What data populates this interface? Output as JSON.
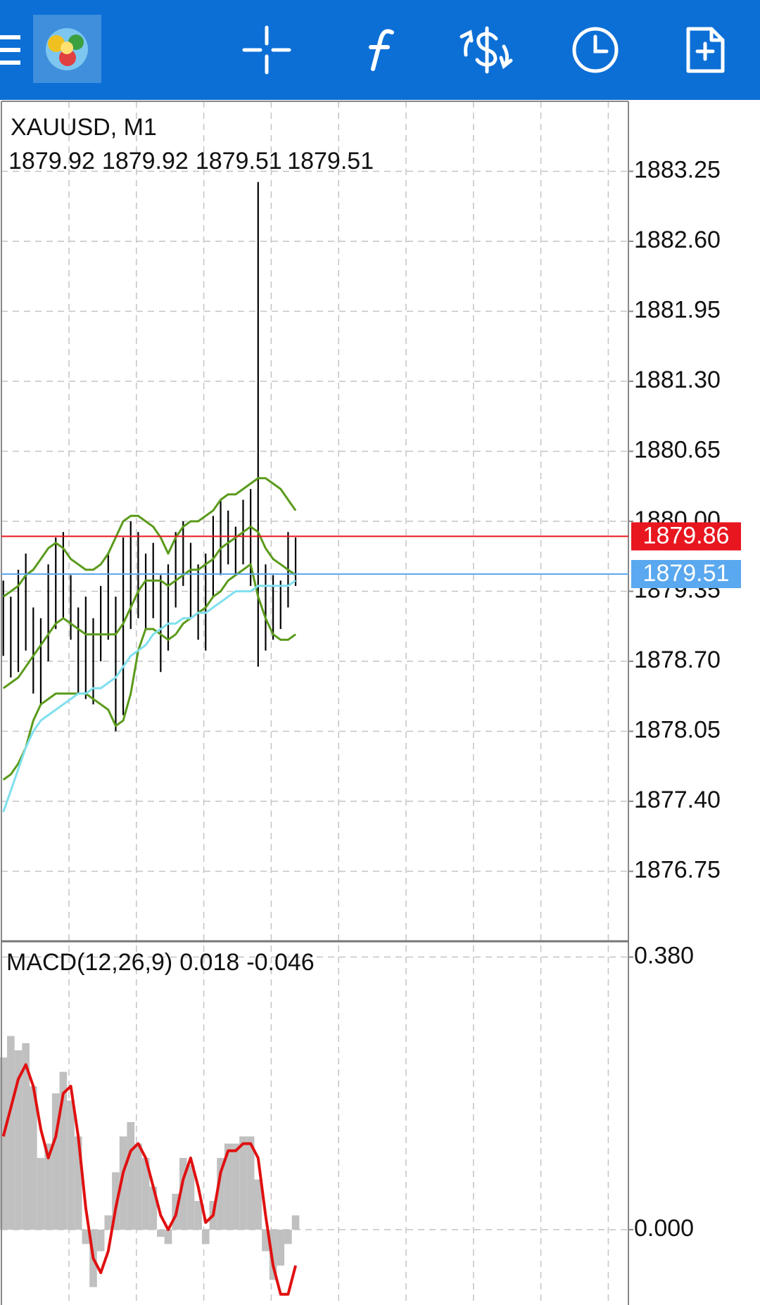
{
  "chart_data": [
    {
      "type": "ohlc",
      "title": "XAUUSD, M1",
      "quote": [
        1879.92,
        1879.92,
        1879.51,
        1879.51
      ],
      "high": [
        1879.45,
        1879.3,
        1879.55,
        1879.7,
        1879.2,
        1879.1,
        1879.6,
        1879.85,
        1879.9,
        1879.5,
        1879.2,
        1879.3,
        1879.1,
        1879.4,
        1879.7,
        1879.3,
        1879.85,
        1880.0,
        1879.9,
        1879.7,
        1879.8,
        1879.5,
        1879.6,
        1879.9,
        1880.0,
        1879.8,
        1879.6,
        1879.7,
        1880.05,
        1880.2,
        1880.1,
        1879.95,
        1880.2,
        1880.3,
        1883.15,
        1879.6,
        1879.5,
        1879.45,
        1879.9,
        1879.85
      ],
      "low": [
        1878.75,
        1878.55,
        1878.6,
        1878.8,
        1878.4,
        1878.3,
        1878.7,
        1879.0,
        1879.1,
        1878.9,
        1878.4,
        1878.35,
        1878.3,
        1878.7,
        1878.9,
        1878.05,
        1878.2,
        1879.0,
        1879.1,
        1879.0,
        1879.1,
        1878.6,
        1878.8,
        1879.2,
        1879.4,
        1879.1,
        1878.9,
        1878.8,
        1879.3,
        1879.5,
        1879.6,
        1879.5,
        1879.6,
        1879.4,
        1878.65,
        1878.8,
        1878.9,
        1879.0,
        1879.2,
        1879.4
      ],
      "color": "#000000",
      "indicators": [
        {
          "color": "#5a9a1a",
          "values": [
            1879.3,
            1879.35,
            1879.4,
            1879.5,
            1879.55,
            1879.65,
            1879.75,
            1879.8,
            1879.75,
            1879.65,
            1879.6,
            1879.55,
            1879.55,
            1879.6,
            1879.7,
            1879.85,
            1880.0,
            1880.05,
            1880.05,
            1880.0,
            1879.95,
            1879.85,
            1879.7,
            1879.85,
            1879.95,
            1880.0,
            1880.0,
            1880.05,
            1880.1,
            1880.2,
            1880.25,
            1880.25,
            1880.3,
            1880.35,
            1880.4,
            1880.4,
            1880.35,
            1880.3,
            1880.2,
            1880.1
          ]
        },
        {
          "color": "#5a9a1a",
          "values": [
            1878.45,
            1878.5,
            1878.55,
            1878.65,
            1878.75,
            1878.85,
            1878.95,
            1879.05,
            1879.1,
            1879.05,
            1879.0,
            1878.95,
            1878.95,
            1878.95,
            1878.95,
            1878.95,
            1879.05,
            1879.2,
            1879.35,
            1879.45,
            1879.45,
            1879.45,
            1879.4,
            1879.45,
            1879.5,
            1879.55,
            1879.55,
            1879.6,
            1879.65,
            1879.75,
            1879.8,
            1879.85,
            1879.9,
            1879.95,
            1879.9,
            1879.75,
            1879.65,
            1879.6,
            1879.55,
            1879.5
          ]
        },
        {
          "color": "#5a9a1a",
          "values": [
            1877.6,
            1877.65,
            1877.75,
            1877.9,
            1878.15,
            1878.3,
            1878.35,
            1878.4,
            1878.4,
            1878.4,
            1878.4,
            1878.4,
            1878.35,
            1878.3,
            1878.25,
            1878.1,
            1878.15,
            1878.4,
            1878.8,
            1879.0,
            1879.0,
            1878.95,
            1878.9,
            1878.95,
            1879.05,
            1879.1,
            1879.15,
            1879.2,
            1879.3,
            1879.35,
            1879.45,
            1879.5,
            1879.55,
            1879.6,
            1879.3,
            1879.1,
            1878.95,
            1878.9,
            1878.9,
            1878.95
          ]
        },
        {
          "color": "#7fe0ee",
          "values": [
            1877.3,
            1877.5,
            1877.7,
            1877.9,
            1878.05,
            1878.15,
            1878.2,
            1878.25,
            1878.3,
            1878.35,
            1878.4,
            1878.4,
            1878.45,
            1878.45,
            1878.5,
            1878.55,
            1878.65,
            1878.75,
            1878.8,
            1878.85,
            1878.95,
            1879.0,
            1879.05,
            1879.05,
            1879.1,
            1879.1,
            1879.15,
            1879.15,
            1879.2,
            1879.25,
            1879.3,
            1879.35,
            1879.35,
            1879.35,
            1879.4,
            1879.4,
            1879.4,
            1879.4,
            1879.4,
            1879.45
          ]
        }
      ],
      "price_lines": [
        {
          "value": 1879.86,
          "color": "#e8161e"
        },
        {
          "value": 1879.51,
          "color": "#5aa8ef"
        }
      ],
      "ylim": [
        1876.1,
        1883.9
      ],
      "yticks": [
        1876.75,
        {
          "value": 1877.4,
          "label": "1877.40"
        },
        1878.05,
        {
          "value": 1878.7,
          "label": "1878.70"
        },
        1879.35,
        {
          "value": 1880.0,
          "label": "1880.00"
        },
        1880.65,
        {
          "value": 1881.3,
          "label": "1881.30"
        },
        1881.95,
        {
          "value": 1882.6,
          "label": "1882.60"
        },
        1883.25
      ],
      "grid": true
    },
    {
      "type": "macd",
      "title": "MACD(12,26,9)",
      "main_value": 0.018,
      "signal_value": -0.046,
      "histogram": {
        "color": "#c0c0c0",
        "values": [
          0.24,
          0.27,
          0.25,
          0.26,
          0.2,
          0.1,
          0.12,
          0.19,
          0.22,
          0.18,
          0.13,
          -0.02,
          -0.08,
          -0.03,
          0.02,
          0.08,
          0.13,
          0.15,
          0.12,
          0.1,
          0.06,
          -0.01,
          -0.02,
          0.05,
          0.1,
          0.09,
          0.04,
          -0.02,
          0.04,
          0.1,
          0.12,
          0.12,
          0.13,
          0.13,
          0.07,
          -0.03,
          -0.07,
          -0.05,
          -0.02,
          0.02
        ]
      },
      "signal": {
        "color": "#e01010",
        "values": [
          0.13,
          0.17,
          0.21,
          0.23,
          0.2,
          0.14,
          0.1,
          0.13,
          0.19,
          0.2,
          0.13,
          0.03,
          -0.04,
          -0.06,
          -0.03,
          0.03,
          0.08,
          0.11,
          0.12,
          0.1,
          0.06,
          0.02,
          0.0,
          0.02,
          0.07,
          0.1,
          0.06,
          0.01,
          0.02,
          0.08,
          0.11,
          0.11,
          0.12,
          0.12,
          0.1,
          0.02,
          -0.05,
          -0.09,
          -0.09,
          -0.05
        ]
      },
      "ylim": [
        -0.105,
        0.402
      ],
      "yticks": [
        {
          "value": 0.0,
          "label": "0.000"
        },
        {
          "value": 0.38,
          "label": "0.380"
        }
      ],
      "grid": true
    }
  ]
}
